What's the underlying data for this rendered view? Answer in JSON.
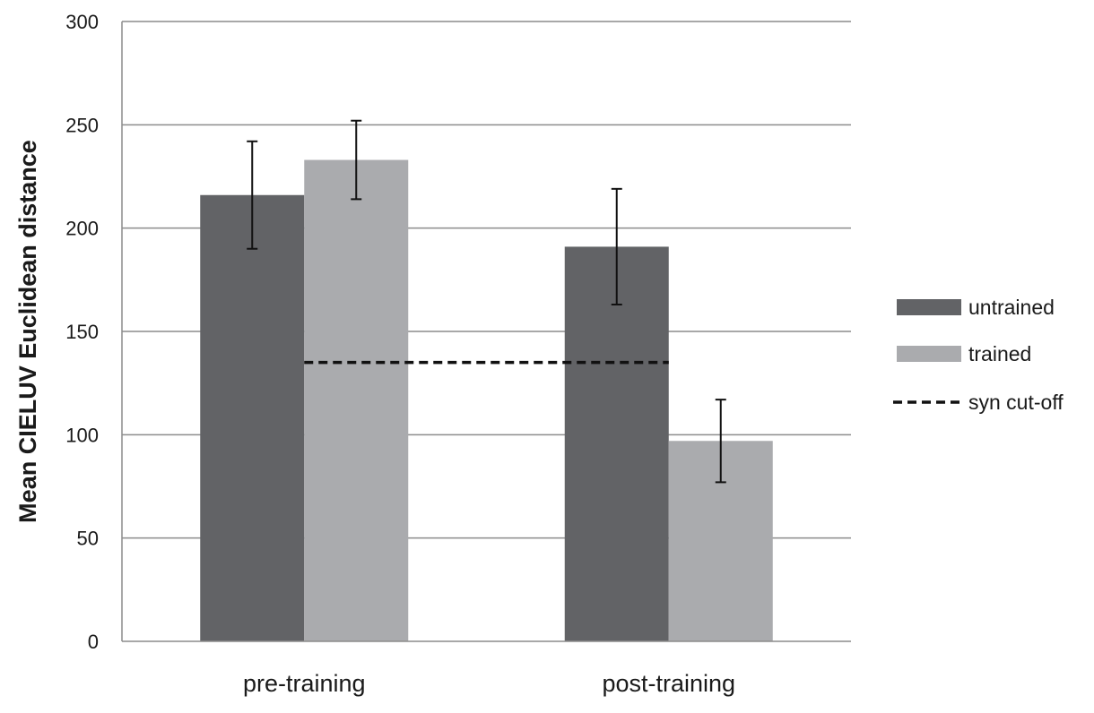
{
  "chart_data": {
    "type": "bar",
    "title": "",
    "xlabel": "",
    "ylabel": "Mean CIELUV Euclidean distance",
    "ylim": [
      0,
      300
    ],
    "yticks": [
      0,
      50,
      100,
      150,
      200,
      250,
      300
    ],
    "grid": true,
    "legend_position": "right",
    "categories": [
      "pre-training",
      "post-training"
    ],
    "series": [
      {
        "name": "untrained",
        "color": "#626366",
        "values": [
          216,
          191
        ],
        "error": [
          26,
          28
        ]
      },
      {
        "name": "trained",
        "color": "#aaabae",
        "values": [
          233,
          97
        ],
        "error": [
          19,
          20
        ]
      }
    ],
    "reference_line": {
      "name": "syn cut-off",
      "value": 135,
      "style": "dashed",
      "color": "#111111"
    }
  }
}
